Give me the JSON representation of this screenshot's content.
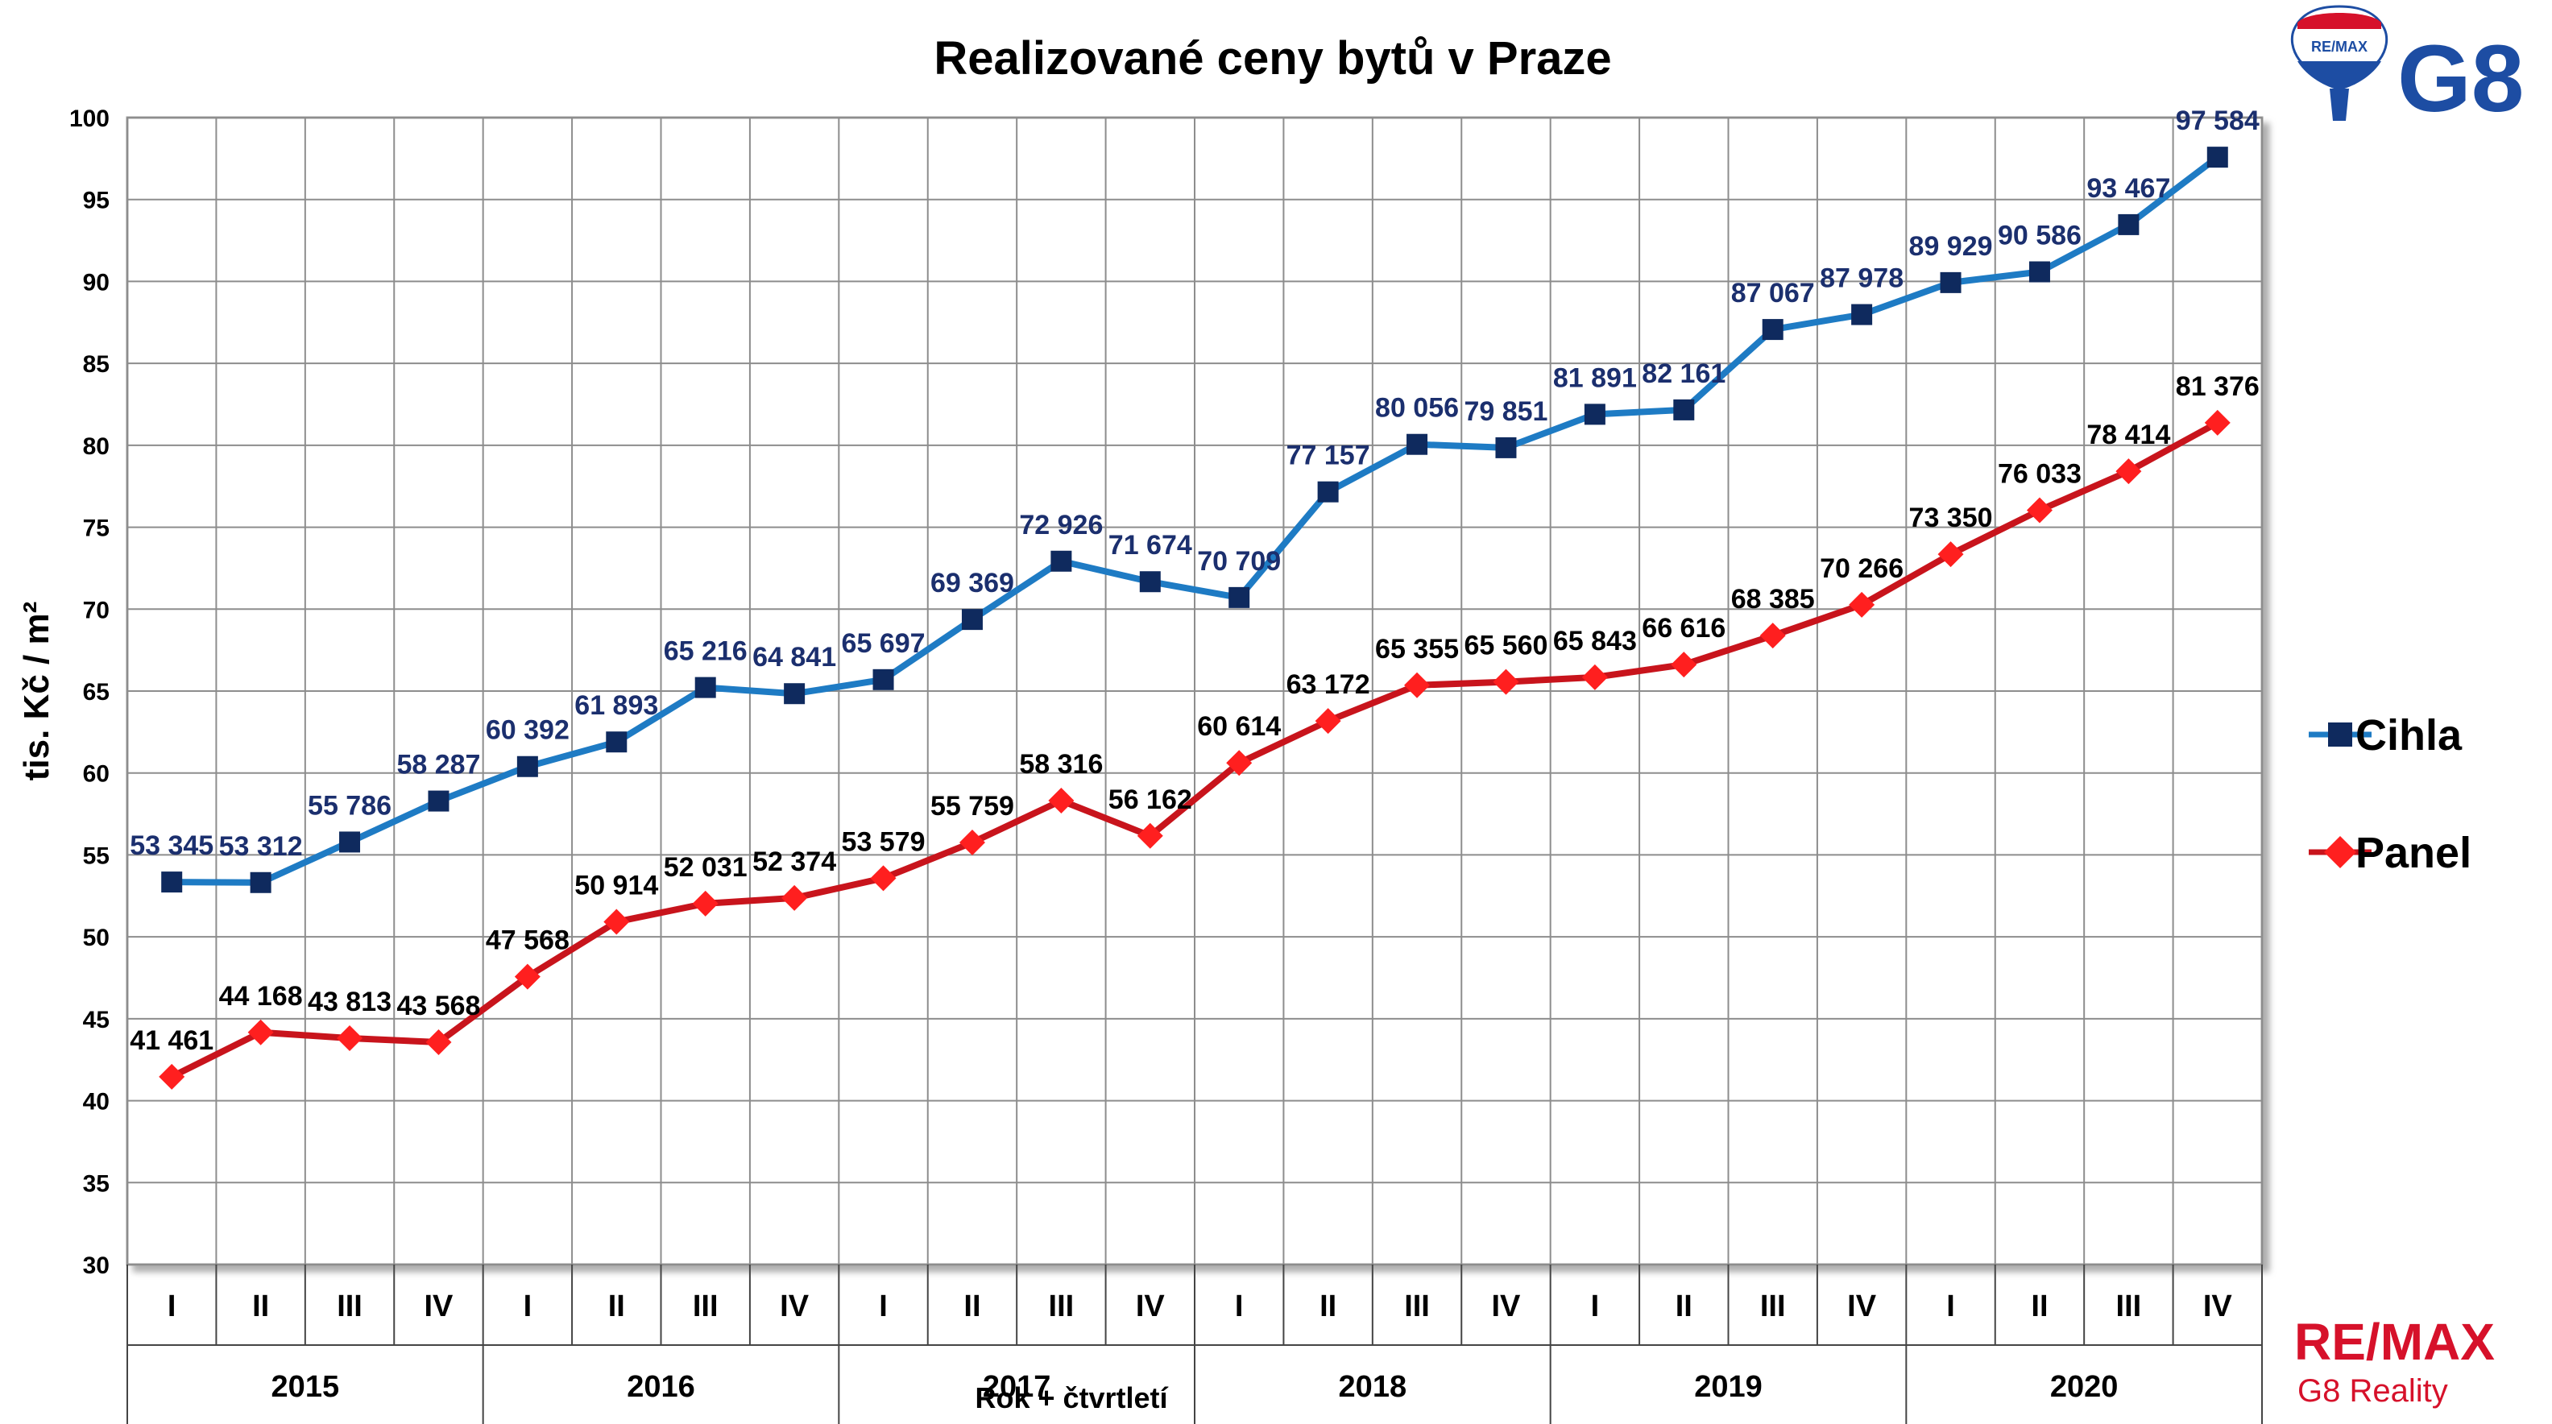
{
  "chart_data": {
    "type": "line",
    "title": "Realizované ceny bytů v Praze",
    "ylabel": "tis. Kč / m²",
    "xlabel": "Rok + čtvrtletí",
    "ylim": [
      30,
      100
    ],
    "yticks": [
      30,
      35,
      40,
      45,
      50,
      55,
      60,
      65,
      70,
      75,
      80,
      85,
      90,
      95,
      100
    ],
    "quarters": [
      "I",
      "II",
      "III",
      "IV",
      "I",
      "II",
      "III",
      "IV",
      "I",
      "II",
      "III",
      "IV",
      "I",
      "II",
      "III",
      "IV",
      "I",
      "II",
      "III",
      "IV",
      "I",
      "II",
      "III",
      "IV"
    ],
    "years": [
      "2015",
      "2016",
      "2017",
      "2018",
      "2019",
      "2020"
    ],
    "grid": true,
    "legend_position": "right",
    "series": [
      {
        "name": "Cihla",
        "color": "#1e7bc4",
        "marker": "square",
        "marker_color": "#0f2a5e",
        "label_color": "#1b2f6e",
        "values": [
          53.345,
          53.312,
          55.786,
          58.287,
          60.392,
          61.893,
          65.216,
          64.841,
          65.697,
          69.369,
          72.926,
          71.674,
          70.709,
          77.157,
          80.056,
          79.851,
          81.891,
          82.161,
          87.067,
          87.978,
          89.929,
          90.586,
          93.467,
          97.584
        ],
        "labels": [
          "53 345",
          "53 312",
          "55 786",
          "58 287",
          "60 392",
          "61 893",
          "65 216",
          "64 841",
          "65 697",
          "69 369",
          "72 926",
          "71 674",
          "70 709",
          "77 157",
          "80 056",
          "79 851",
          "81 891",
          "82 161",
          "87 067",
          "87 978",
          "89 929",
          "90 586",
          "93 467",
          "97 584"
        ]
      },
      {
        "name": "Panel",
        "color": "#c8141c",
        "marker": "diamond",
        "marker_color": "#ff1f1f",
        "label_color": "#000000",
        "values": [
          41.461,
          44.168,
          43.813,
          43.568,
          47.568,
          50.914,
          52.031,
          52.374,
          53.579,
          55.759,
          58.316,
          56.162,
          60.614,
          63.172,
          65.355,
          65.56,
          65.843,
          66.616,
          68.385,
          70.266,
          73.35,
          76.033,
          78.414,
          81.376
        ],
        "labels": [
          "41 461",
          "44 168",
          "43 813",
          "43 568",
          "47 568",
          "50 914",
          "52 031",
          "52 374",
          "53 579",
          "55 759",
          "58 316",
          "56 162",
          "60 614",
          "63 172",
          "65 355",
          "65 560",
          "65 843",
          "66 616",
          "68 385",
          "70 266",
          "73 350",
          "76 033",
          "78 414",
          "81 376"
        ]
      }
    ]
  },
  "logos": {
    "balloon_text": "RE/MAX",
    "top_brand": "G8",
    "bottom_brand": "RE/MAX",
    "bottom_sub": "G8 Reality"
  }
}
